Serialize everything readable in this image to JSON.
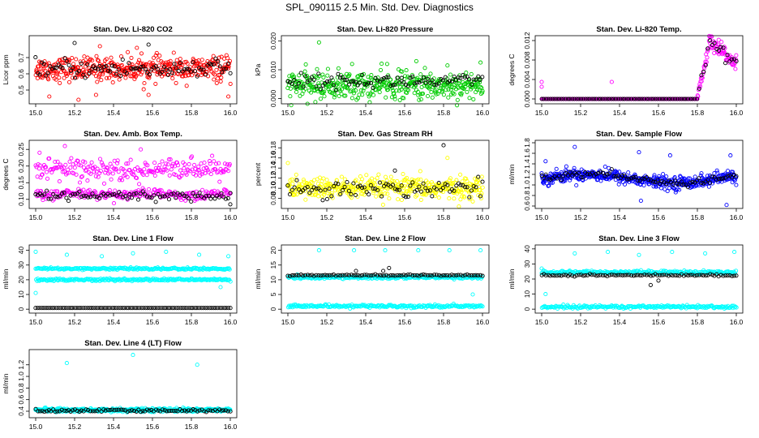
{
  "page": {
    "title": "SPL_090115  2.5 Min. Std. Dev. Diagnostics"
  },
  "colors": {
    "black": "#000000",
    "red": "#ff0000",
    "green": "#00cc00",
    "magenta": "#ff00ff",
    "yellow": "#ffff00",
    "blue": "#0000ff",
    "cyan": "#00ffff"
  },
  "chart_data": [
    {
      "type": "scatter",
      "title": "Stan. Dev. Li-820 CO2",
      "ylabel": "Licor ppm",
      "xlim": [
        15.0,
        16.0
      ],
      "ylim": [
        0.43,
        0.82
      ],
      "xticks": [
        "15.0",
        "15.2",
        "15.4",
        "15.6",
        "15.8",
        "16.0"
      ],
      "yticks": [
        "0.5",
        "0.6",
        "0.7"
      ],
      "grid": false,
      "series": [
        {
          "color": "red",
          "pattern": "noise",
          "count": 420,
          "center": 0.63,
          "spread": 0.06,
          "outliers": [
            [
              15.07,
              0.46
            ],
            [
              15.22,
              0.44
            ],
            [
              15.31,
              0.47
            ],
            [
              15.58,
              0.47
            ],
            [
              15.99,
              0.46
            ],
            [
              15.52,
              0.76
            ],
            [
              15.33,
              0.77
            ]
          ]
        },
        {
          "color": "black",
          "pattern": "noise",
          "count": 95,
          "center": 0.63,
          "spread": 0.05,
          "outliers": [
            [
              15.2,
              0.79
            ],
            [
              15.58,
              0.78
            ]
          ]
        }
      ]
    },
    {
      "type": "scatter",
      "title": "Stan. Dev. Li-820 Pressure",
      "ylabel": "kPa",
      "xlim": [
        15.0,
        16.0
      ],
      "ylim": [
        -0.001,
        0.021
      ],
      "xticks": [
        "15.0",
        "15.2",
        "15.4",
        "15.6",
        "15.8",
        "16.0"
      ],
      "yticks": [
        "0.000",
        "0.010",
        "0.020"
      ],
      "grid": false,
      "series": [
        {
          "color": "green",
          "pattern": "noise",
          "count": 420,
          "center": 0.0045,
          "spread": 0.004,
          "outliers": [
            [
              15.16,
              0.0195
            ],
            [
              15.33,
              0.012
            ],
            [
              15.51,
              0.012
            ],
            [
              15.66,
              0.013
            ],
            [
              15.82,
              0.0115
            ],
            [
              15.99,
              0.0125
            ]
          ]
        },
        {
          "color": "black",
          "pattern": "noise",
          "count": 90,
          "center": 0.006,
          "spread": 0.002,
          "outliers": []
        }
      ]
    },
    {
      "type": "scatter",
      "title": "Stan. Dev. Li-820 Temp.",
      "ylabel": "degrees C",
      "xlim": [
        15.0,
        16.0
      ],
      "ylim": [
        -0.0005,
        0.0125
      ],
      "xticks": [
        "15.0",
        "15.2",
        "15.4",
        "15.6",
        "15.8",
        "16.0"
      ],
      "yticks": [
        "0.000",
        "0.004",
        "0.008",
        "0.012"
      ],
      "grid": false,
      "series": [
        {
          "color": "magenta",
          "pattern": "temp",
          "count": 420,
          "center": 0.0,
          "spread": 0.0,
          "outliers": [
            [
              15.0,
              0.0035
            ],
            [
              15.36,
              0.0035
            ],
            [
              15.0,
              0.0025
            ]
          ]
        },
        {
          "color": "black",
          "pattern": "temp",
          "count": 90,
          "center": 0.0,
          "spread": 0.0,
          "outliers": []
        }
      ]
    },
    {
      "type": "scatter",
      "title": "Stan. Dev. Amb. Box Temp.",
      "ylabel": "degrees C",
      "xlim": [
        15.0,
        16.0
      ],
      "ylim": [
        0.08,
        0.27
      ],
      "xticks": [
        "15.0",
        "15.2",
        "15.4",
        "15.6",
        "15.8",
        "16.0"
      ],
      "yticks": [
        "0.10",
        "0.15",
        "0.20",
        "0.25"
      ],
      "grid": false,
      "series": [
        {
          "color": "magenta",
          "pattern": "bands",
          "count": 460,
          "center": 0.19,
          "spread": 0.03,
          "band2": 0.115,
          "outliers": [
            [
              15.15,
              0.26
            ],
            [
              15.02,
              0.24
            ],
            [
              15.54,
              0.25
            ]
          ]
        },
        {
          "color": "black",
          "pattern": "noise",
          "count": 90,
          "center": 0.11,
          "spread": 0.012,
          "outliers": [
            [
              16.0,
              0.085
            ]
          ]
        }
      ]
    },
    {
      "type": "scatter",
      "title": "Stan. Dev. Gas Stream RH",
      "ylabel": "percent",
      "xlim": [
        15.0,
        16.0
      ],
      "ylim": [
        0.065,
        0.19
      ],
      "xticks": [
        "15.0",
        "15.2",
        "15.4",
        "15.6",
        "15.8",
        "16.0"
      ],
      "yticks": [
        "0.08",
        "0.10",
        "0.12",
        "0.14",
        "0.16",
        "0.18"
      ],
      "grid": false,
      "series": [
        {
          "color": "yellow",
          "pattern": "noise",
          "count": 420,
          "center": 0.1,
          "spread": 0.018,
          "outliers": [
            [
              15.0,
              0.15
            ],
            [
              15.82,
              0.16
            ]
          ]
        },
        {
          "color": "black",
          "pattern": "noise",
          "count": 90,
          "center": 0.1,
          "spread": 0.015,
          "outliers": [
            [
              15.8,
              0.185
            ],
            [
              15.55,
              0.135
            ]
          ]
        }
      ]
    },
    {
      "type": "scatter",
      "title": "Stan. Dev. Sample Flow",
      "ylabel": "ml/min",
      "xlim": [
        15.0,
        16.0
      ],
      "ylim": [
        0.6,
        1.8
      ],
      "xticks": [
        "15.0",
        "15.2",
        "15.4",
        "15.6",
        "15.8",
        "16.0"
      ],
      "yticks": [
        "0.6",
        "0.8",
        "1.0",
        "1.2",
        "1.4",
        "1.6",
        "1.8"
      ],
      "grid": false,
      "series": [
        {
          "color": "blue",
          "pattern": "wave",
          "count": 460,
          "center": 1.12,
          "spread": 0.1,
          "outliers": [
            [
              15.17,
              1.72
            ],
            [
              15.5,
              1.62
            ],
            [
              15.66,
              1.56
            ],
            [
              15.97,
              1.56
            ],
            [
              15.51,
              0.7
            ],
            [
              15.95,
              0.62
            ],
            [
              15.02,
              1.45
            ]
          ]
        },
        {
          "color": "black",
          "pattern": "wave",
          "count": 90,
          "center": 1.12,
          "spread": 0.06,
          "outliers": []
        }
      ]
    },
    {
      "type": "scatter",
      "title": "Stan. Dev. Line 1 Flow",
      "ylabel": "ml/min",
      "xlim": [
        15.0,
        16.0
      ],
      "ylim": [
        -1,
        42
      ],
      "xticks": [
        "15.0",
        "15.2",
        "15.4",
        "15.6",
        "15.8",
        "16.0"
      ],
      "yticks": [
        "0",
        "10",
        "20",
        "30",
        "40"
      ],
      "grid": false,
      "series": [
        {
          "color": "cyan",
          "pattern": "levels",
          "levels": [
            27.5,
            20.0
          ],
          "count": 460,
          "spread": 0.8,
          "outliers": [
            [
              15.0,
              39
            ],
            [
              15.16,
              37
            ],
            [
              15.34,
              36
            ],
            [
              15.5,
              38
            ],
            [
              15.67,
              39
            ],
            [
              15.84,
              37
            ],
            [
              15.99,
              36
            ],
            [
              15.0,
              11
            ],
            [
              15.95,
              15
            ]
          ]
        },
        {
          "color": "black",
          "pattern": "levels",
          "levels": [
            0.8
          ],
          "count": 95,
          "spread": 0.0,
          "outliers": []
        }
      ]
    },
    {
      "type": "scatter",
      "title": "Stan. Dev. Line 2 Flow",
      "ylabel": "ml/min",
      "xlim": [
        15.0,
        16.0
      ],
      "ylim": [
        -0.5,
        21
      ],
      "xticks": [
        "15.0",
        "15.2",
        "15.4",
        "15.6",
        "15.8",
        "16.0"
      ],
      "yticks": [
        "0",
        "5",
        "10",
        "15",
        "20"
      ],
      "grid": false,
      "series": [
        {
          "color": "cyan",
          "pattern": "levels",
          "levels": [
            10.8,
            1.0
          ],
          "count": 460,
          "spread": 0.5,
          "outliers": [
            [
              15.16,
              20
            ],
            [
              15.34,
              20
            ],
            [
              15.5,
              20
            ],
            [
              15.67,
              20
            ],
            [
              15.83,
              20
            ],
            [
              15.99,
              20
            ],
            [
              15.95,
              5
            ]
          ]
        },
        {
          "color": "black",
          "pattern": "levels",
          "levels": [
            11.5
          ],
          "count": 90,
          "spread": 0.3,
          "outliers": [
            [
              15.52,
              14
            ],
            [
              15.49,
              13
            ],
            [
              15.35,
              13
            ]
          ]
        }
      ]
    },
    {
      "type": "scatter",
      "title": "Stan. Dev. Line 3 Flow",
      "ylabel": "ml/min",
      "xlim": [
        15.0,
        16.0
      ],
      "ylim": [
        -1,
        41
      ],
      "xticks": [
        "15.0",
        "15.2",
        "15.4",
        "15.6",
        "15.8",
        "16.0"
      ],
      "yticks": [
        "0",
        "10",
        "20",
        "30",
        "40"
      ],
      "grid": false,
      "series": [
        {
          "color": "cyan",
          "pattern": "levels",
          "levels": [
            24.5,
            1.5
          ],
          "count": 460,
          "spread": 1.0,
          "outliers": [
            [
              15.0,
              27
            ],
            [
              15.17,
              37
            ],
            [
              15.34,
              38
            ],
            [
              15.5,
              36
            ],
            [
              15.67,
              38
            ],
            [
              15.84,
              37
            ],
            [
              15.99,
              38
            ],
            [
              15.02,
              10
            ]
          ]
        },
        {
          "color": "black",
          "pattern": "levels",
          "levels": [
            22.5
          ],
          "count": 90,
          "spread": 0.6,
          "outliers": [
            [
              15.56,
              16
            ],
            [
              15.6,
              19
            ]
          ]
        }
      ]
    },
    {
      "type": "scatter",
      "title": "Stan. Dev. Line 4 (LT) Flow",
      "ylabel": "ml/min",
      "xlim": [
        15.0,
        16.0
      ],
      "ylim": [
        0.33,
        1.42
      ],
      "xticks": [
        "15.0",
        "15.2",
        "15.4",
        "15.6",
        "15.8",
        "16.0"
      ],
      "yticks": [
        "0.4",
        "0.6",
        "0.8",
        "1.0",
        "1.2"
      ],
      "grid": false,
      "series": [
        {
          "color": "cyan",
          "pattern": "levels",
          "levels": [
            0.42
          ],
          "count": 460,
          "spread": 0.03,
          "outliers": [
            [
              15.16,
              1.23
            ],
            [
              15.5,
              1.37
            ],
            [
              15.83,
              1.2
            ]
          ]
        },
        {
          "color": "black",
          "pattern": "levels",
          "levels": [
            0.41
          ],
          "count": 90,
          "spread": 0.025,
          "outliers": []
        }
      ]
    }
  ]
}
